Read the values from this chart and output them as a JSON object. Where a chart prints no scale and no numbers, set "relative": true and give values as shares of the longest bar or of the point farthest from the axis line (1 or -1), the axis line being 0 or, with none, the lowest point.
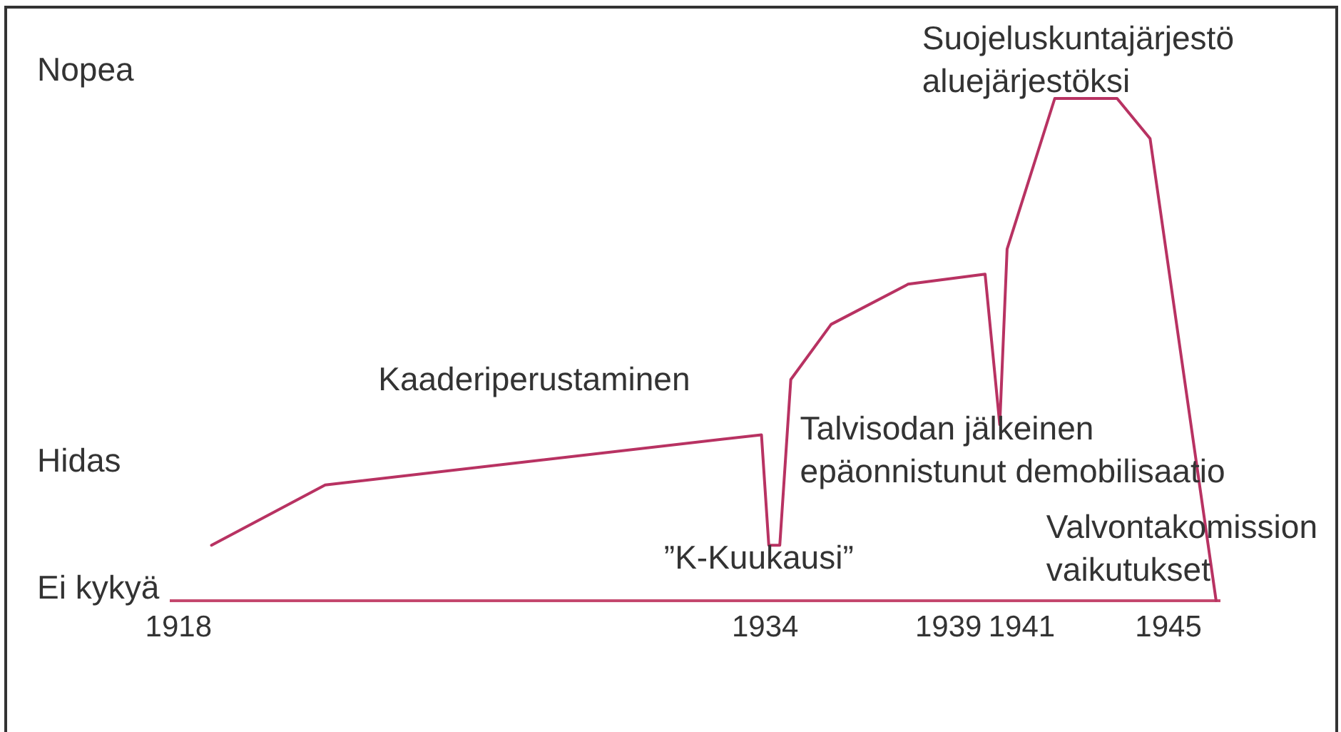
{
  "chart_data": {
    "type": "line",
    "relative": true,
    "x": [
      1918.9,
      1922.0,
      1933.9,
      1934.1,
      1934.4,
      1934.7,
      1935.8,
      1937.9,
      1940.0,
      1940.4,
      1940.6,
      1941.9,
      1943.6,
      1944.5,
      1946.3
    ],
    "values": [
      0.11,
      0.23,
      0.33,
      0.11,
      0.11,
      0.44,
      0.55,
      0.63,
      0.65,
      0.35,
      0.7,
      1,
      1,
      0.92,
      0
    ],
    "color": "#b83262",
    "xlim": [
      1917.8,
      1946.4
    ],
    "xticks": [
      1918,
      1934,
      1939,
      1941,
      1945
    ],
    "grid": false,
    "legend": false,
    "marker": "none",
    "line_style": "solid",
    "annotations": [
      "Nopea",
      "Hidas",
      "Ei kykyä",
      {
        "text": "Kaaderiperustaminen",
        "x": 1927.7,
        "y": 0.28
      },
      {
        "text": "”K-Kuukausi”",
        "x": 1934.1,
        "y": 0.11
      },
      {
        "text": "Talvisodan jälkeinen\nepäonnistunut demobilisaatio",
        "x": 1940.4,
        "y": 0.35
      },
      {
        "text": "Suojeluskuntajärjestö\naluejärjestöksi",
        "x": 1941.9,
        "y": 1
      },
      {
        "text": "Valvontakomission\nvaikutukset",
        "x": 1946.3,
        "y": 0
      }
    ]
  }
}
